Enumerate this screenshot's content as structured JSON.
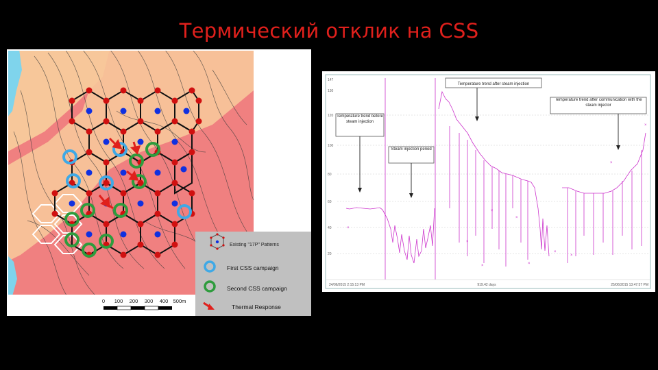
{
  "slide": {
    "title": "Термический отклик на CSS"
  },
  "map": {
    "legend": {
      "pattern": "Existing \"17P\" Patterns",
      "first": "First CSS campaign",
      "second": "Second CSS campaign",
      "thermal": "Thermal Response"
    },
    "scale": {
      "ticks": [
        "0",
        "100",
        "200",
        "300",
        "400",
        "500m"
      ]
    },
    "colors": {
      "zone_red": "#f08080",
      "zone_peach": "#f7c79a",
      "water": "#7fd4ec",
      "first_campaign": "#3fa9e6",
      "second_campaign": "#2e9c3d",
      "well": "#d01010",
      "injector": "#1030e0"
    }
  },
  "chart": {
    "annotations": {
      "before": "Temperature trend before steam injection",
      "injection": "Steam injection period",
      "after": "Temperature trend after steam injection",
      "communication": "Temperature trend after communication with the steam injector"
    },
    "y_ticks": [
      "147",
      "130",
      "120",
      "100",
      "80",
      "60",
      "40",
      "20"
    ],
    "x_start": "24/06/2015 2:15:13 PM",
    "x_mid": "919.42 days",
    "x_end": "25/06/2015 13:47:57 PM",
    "colors": {
      "series": "#cc33cc"
    }
  }
}
